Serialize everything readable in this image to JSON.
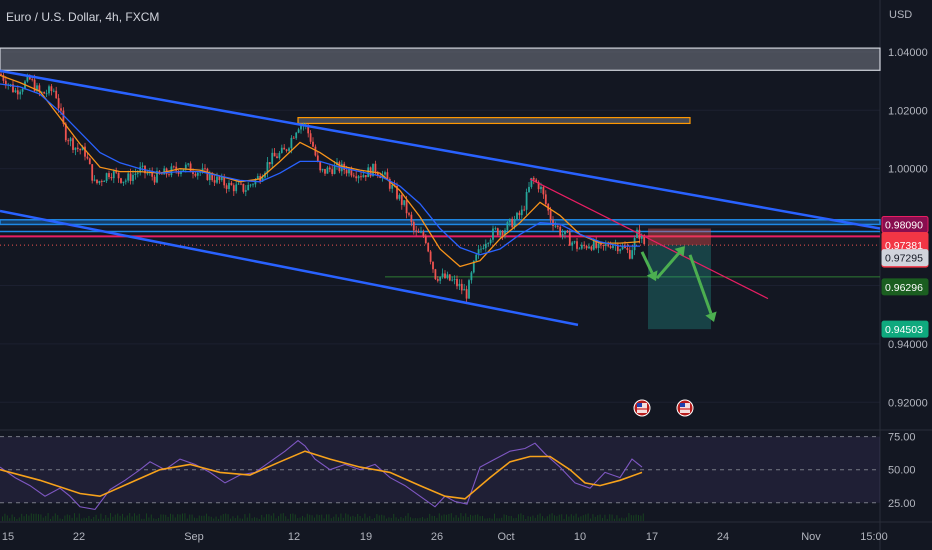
{
  "header": {
    "title": "Euro / U.S. Dollar, 4h, FXCM",
    "currency": "USD"
  },
  "colors": {
    "bg": "#131722",
    "up": "#26a69a",
    "down": "#ef5350",
    "channel": "#2962ff",
    "ema_fast": "#f7931a",
    "ema_slow": "#2962ff",
    "rsi": "#7e57c2",
    "rsi_ma": "#f7a21b",
    "magenta": "#e91e63",
    "zone_blue": "#1e88e5",
    "zone_orange": "#ff9800",
    "zone_gray": "#787b86",
    "teal_green": "#0fa97e",
    "arrow": "#4caf50"
  },
  "chart_data": {
    "type": "candlestick",
    "symbol": "Euro / U.S. Dollar",
    "timeframe": "4h",
    "source": "FXCM",
    "y_axis": {
      "ticks": [
        "1.04000",
        "1.02000",
        "1.00000",
        "0.98000",
        "0.96000",
        "0.94000",
        "0.92000"
      ],
      "range": [
        0.9105,
        1.0475
      ]
    },
    "x_axis": {
      "ticks": [
        "15",
        "22",
        "Sep",
        "12",
        "19",
        "26",
        "Oct",
        "10",
        "17",
        "24",
        "Nov",
        "15:00"
      ]
    },
    "price_labels": [
      {
        "text": "0.98090",
        "style": "magenta"
      },
      {
        "text": "0.98089",
        "style": "red"
      },
      {
        "text": "0.97381",
        "style": "red"
      },
      {
        "text": "01:41:32",
        "style": "red"
      },
      {
        "text": "0.97295",
        "style": "gray"
      },
      {
        "text": "0.96296",
        "style": "green"
      },
      {
        "text": "0.94503",
        "style": "teal"
      }
    ],
    "path": [
      [
        0,
        1.0325
      ],
      [
        15,
        1.0265
      ],
      [
        30,
        1.0305
      ],
      [
        40,
        1.0255
      ],
      [
        55,
        1.027
      ],
      [
        65,
        1.012
      ],
      [
        75,
        1.0075
      ],
      [
        85,
        1.0055
      ],
      [
        95,
        0.9945
      ],
      [
        110,
        0.999
      ],
      [
        125,
        0.996
      ],
      [
        140,
        0.9995
      ],
      [
        155,
        0.997
      ],
      [
        170,
        0.999
      ],
      [
        185,
        1.0005
      ],
      [
        200,
        0.999
      ],
      [
        215,
        0.9965
      ],
      [
        230,
        0.994
      ],
      [
        245,
        0.993
      ],
      [
        260,
        0.9975
      ],
      [
        270,
        1.003
      ],
      [
        285,
        1.006
      ],
      [
        298,
        1.015
      ],
      [
        305,
        1.015
      ],
      [
        312,
        1.009
      ],
      [
        320,
        0.9985
      ],
      [
        335,
        1.0005
      ],
      [
        350,
        0.9995
      ],
      [
        362,
        0.998
      ],
      [
        375,
        1.0
      ],
      [
        385,
        0.997
      ],
      [
        395,
        0.992
      ],
      [
        405,
        0.987
      ],
      [
        415,
        0.9775
      ],
      [
        425,
        0.977
      ],
      [
        435,
        0.9635
      ],
      [
        445,
        0.9625
      ],
      [
        455,
        0.961
      ],
      [
        467,
        0.957
      ],
      [
        475,
        0.9685
      ],
      [
        485,
        0.9755
      ],
      [
        495,
        0.9785
      ],
      [
        505,
        0.9795
      ],
      [
        515,
        0.9825
      ],
      [
        522,
        0.985
      ],
      [
        532,
        0.9965
      ],
      [
        540,
        0.994
      ],
      [
        550,
        0.9835
      ],
      [
        560,
        0.9785
      ],
      [
        570,
        0.9755
      ],
      [
        580,
        0.9725
      ],
      [
        590,
        0.9745
      ],
      [
        600,
        0.972
      ],
      [
        610,
        0.9745
      ],
      [
        620,
        0.9735
      ],
      [
        630,
        0.971
      ],
      [
        638,
        0.9785
      ],
      [
        645,
        0.9738
      ]
    ],
    "ema_fast": [
      [
        0,
        1.032
      ],
      [
        20,
        1.0295
      ],
      [
        40,
        1.0265
      ],
      [
        60,
        1.0175
      ],
      [
        80,
        1.0085
      ],
      [
        100,
        1.0005
      ],
      [
        120,
        0.999
      ],
      [
        140,
        0.999
      ],
      [
        160,
        0.9985
      ],
      [
        180,
        1.0
      ],
      [
        200,
        0.9995
      ],
      [
        220,
        0.9975
      ],
      [
        240,
        0.9955
      ],
      [
        260,
        0.9965
      ],
      [
        280,
        1.0025
      ],
      [
        300,
        1.009
      ],
      [
        320,
        1.0055
      ],
      [
        340,
        1.001
      ],
      [
        360,
        0.9995
      ],
      [
        380,
        0.9985
      ],
      [
        400,
        0.9925
      ],
      [
        420,
        0.9835
      ],
      [
        440,
        0.9725
      ],
      [
        460,
        0.9665
      ],
      [
        480,
        0.9685
      ],
      [
        500,
        0.976
      ],
      [
        520,
        0.9815
      ],
      [
        540,
        0.9885
      ],
      [
        560,
        0.984
      ],
      [
        580,
        0.9775
      ],
      [
        600,
        0.9745
      ],
      [
        620,
        0.9745
      ],
      [
        640,
        0.975
      ]
    ],
    "ema_slow": [
      [
        0,
        1.029
      ],
      [
        20,
        1.028
      ],
      [
        40,
        1.0255
      ],
      [
        60,
        1.0195
      ],
      [
        80,
        1.0125
      ],
      [
        100,
        1.0055
      ],
      [
        120,
        1.002
      ],
      [
        140,
        1.0
      ],
      [
        160,
        0.9985
      ],
      [
        180,
        0.999
      ],
      [
        200,
        0.999
      ],
      [
        220,
        0.9975
      ],
      [
        240,
        0.996
      ],
      [
        260,
        0.9955
      ],
      [
        280,
        0.9985
      ],
      [
        300,
        1.0025
      ],
      [
        320,
        1.0025
      ],
      [
        340,
        1.0005
      ],
      [
        360,
        0.999
      ],
      [
        380,
        0.9975
      ],
      [
        400,
        0.994
      ],
      [
        420,
        0.988
      ],
      [
        440,
        0.9795
      ],
      [
        460,
        0.973
      ],
      [
        480,
        0.9705
      ],
      [
        500,
        0.9725
      ],
      [
        520,
        0.9775
      ],
      [
        540,
        0.9815
      ],
      [
        560,
        0.981
      ],
      [
        580,
        0.9775
      ],
      [
        600,
        0.975
      ],
      [
        620,
        0.9735
      ],
      [
        640,
        0.9735
      ]
    ],
    "annotations": {
      "channel_upper": [
        [
          0,
          1.0335
        ],
        [
          880,
          0.9795
        ]
      ],
      "channel_lower": [
        [
          0,
          0.9855
        ],
        [
          578,
          0.9465
        ]
      ],
      "gray_zone": {
        "x": [
          0,
          880
        ],
        "y": [
          1.0337,
          1.0413
        ]
      },
      "orange_zone": {
        "x": [
          298,
          690
        ],
        "y": [
          1.0155,
          1.0175
        ]
      },
      "blue_zone": {
        "x": [
          0,
          880
        ],
        "y": [
          0.9809,
          0.9825
        ]
      },
      "blue_zone_line": 0.9785,
      "magenta_line": 0.9768,
      "dotted_current_price": 0.97381,
      "green_line": {
        "x": [
          385,
          880
        ],
        "y": 0.96296
      },
      "pink_trendline": [
        [
          530,
          0.9965
        ],
        [
          768,
          0.9555
        ]
      ],
      "short_risk_box": {
        "x": [
          648,
          711
        ],
        "y": [
          0.97381,
          0.9795
        ]
      },
      "short_reward_box": {
        "x": [
          648,
          711
        ],
        "y": [
          0.94503,
          0.97381
        ]
      },
      "arrows": [
        {
          "from": [
            642,
            0.9715
          ],
          "to": [
            656,
            0.9615
          ]
        },
        {
          "from": [
            657,
            0.9625
          ],
          "to": [
            685,
            0.9735
          ]
        },
        {
          "from": [
            690,
            0.9705
          ],
          "to": [
            714,
            0.9475
          ]
        }
      ],
      "event_markers_x": [
        642,
        685
      ]
    },
    "rsi": {
      "levels": [
        "75.00",
        "50.00",
        "25.00"
      ],
      "range": [
        12,
        80
      ],
      "series": [
        [
          0,
          52
        ],
        [
          15,
          44
        ],
        [
          30,
          38
        ],
        [
          45,
          30
        ],
        [
          60,
          36
        ],
        [
          70,
          30
        ],
        [
          80,
          22
        ],
        [
          95,
          20
        ],
        [
          110,
          35
        ],
        [
          125,
          42
        ],
        [
          140,
          50
        ],
        [
          150,
          56
        ],
        [
          165,
          50
        ],
        [
          180,
          58
        ],
        [
          195,
          54
        ],
        [
          210,
          48
        ],
        [
          225,
          40
        ],
        [
          240,
          46
        ],
        [
          255,
          48
        ],
        [
          270,
          56
        ],
        [
          285,
          64
        ],
        [
          298,
          72
        ],
        [
          305,
          68
        ],
        [
          315,
          58
        ],
        [
          330,
          50
        ],
        [
          345,
          54
        ],
        [
          360,
          50
        ],
        [
          375,
          54
        ],
        [
          390,
          44
        ],
        [
          405,
          38
        ],
        [
          420,
          30
        ],
        [
          435,
          22
        ],
        [
          445,
          30
        ],
        [
          455,
          26
        ],
        [
          467,
          24
        ],
        [
          480,
          52
        ],
        [
          495,
          58
        ],
        [
          510,
          64
        ],
        [
          525,
          66
        ],
        [
          535,
          70
        ],
        [
          545,
          62
        ],
        [
          560,
          52
        ],
        [
          575,
          40
        ],
        [
          590,
          36
        ],
        [
          605,
          48
        ],
        [
          620,
          44
        ],
        [
          632,
          58
        ],
        [
          642,
          52
        ]
      ],
      "ma": [
        [
          0,
          50
        ],
        [
          40,
          42
        ],
        [
          80,
          32
        ],
        [
          100,
          30
        ],
        [
          130,
          40
        ],
        [
          160,
          50
        ],
        [
          190,
          54
        ],
        [
          220,
          48
        ],
        [
          250,
          46
        ],
        [
          280,
          56
        ],
        [
          305,
          64
        ],
        [
          330,
          58
        ],
        [
          360,
          52
        ],
        [
          390,
          48
        ],
        [
          420,
          38
        ],
        [
          445,
          30
        ],
        [
          465,
          28
        ],
        [
          490,
          44
        ],
        [
          510,
          56
        ],
        [
          530,
          60
        ],
        [
          550,
          60
        ],
        [
          570,
          50
        ],
        [
          585,
          40
        ],
        [
          600,
          38
        ],
        [
          620,
          42
        ],
        [
          642,
          48
        ]
      ]
    }
  }
}
